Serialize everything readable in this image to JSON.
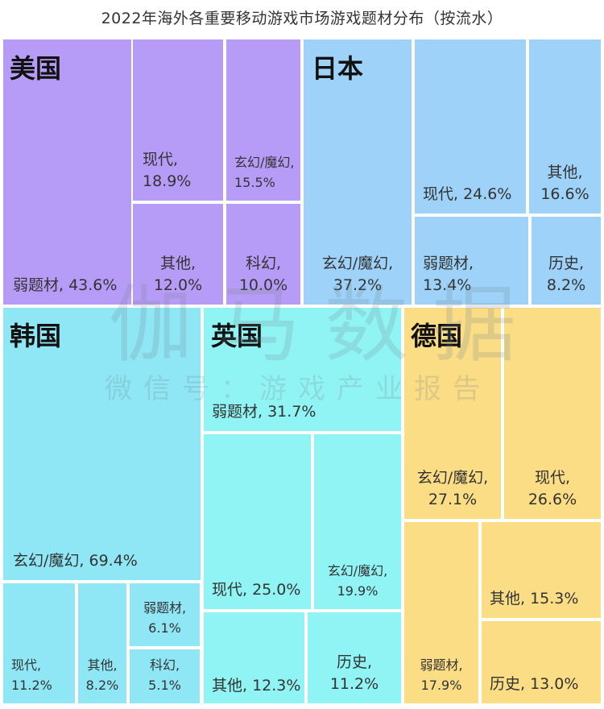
{
  "chart_data": {
    "type": "treemap",
    "title": "2022年海外各重要移动游戏市场游戏题材分布（按流水）",
    "watermark": {
      "main": "伽马数据",
      "sub": "微信号：游戏产业报告"
    },
    "colors": {
      "美国": "#B79CF7",
      "日本": "#9ED2F8",
      "韩国": "#8FE6F4",
      "英国": "#91F4F4",
      "德国": "#FBDD86"
    },
    "groups": [
      {
        "country": "美国",
        "items": [
          {
            "label": "弱题材",
            "pct": "43.6%",
            "value": 43.6
          },
          {
            "label": "现代",
            "pct": "18.9%",
            "value": 18.9
          },
          {
            "label": "玄幻/魔幻",
            "pct": "15.5%",
            "value": 15.5
          },
          {
            "label": "其他",
            "pct": "12.0%",
            "value": 12.0
          },
          {
            "label": "科幻",
            "pct": "10.0%",
            "value": 10.0
          }
        ]
      },
      {
        "country": "日本",
        "items": [
          {
            "label": "玄幻/魔幻",
            "pct": "37.2%",
            "value": 37.2
          },
          {
            "label": "现代",
            "pct": "24.6%",
            "value": 24.6
          },
          {
            "label": "其他",
            "pct": "16.6%",
            "value": 16.6
          },
          {
            "label": "弱题材",
            "pct": "13.4%",
            "value": 13.4
          },
          {
            "label": "历史",
            "pct": "8.2%",
            "value": 8.2
          }
        ]
      },
      {
        "country": "韩国",
        "items": [
          {
            "label": "玄幻/魔幻",
            "pct": "69.4%",
            "value": 69.4
          },
          {
            "label": "现代",
            "pct": "11.2%",
            "value": 11.2
          },
          {
            "label": "其他",
            "pct": "8.2%",
            "value": 8.2
          },
          {
            "label": "弱题材",
            "pct": "6.1%",
            "value": 6.1
          },
          {
            "label": "科幻",
            "pct": "5.1%",
            "value": 5.1
          }
        ]
      },
      {
        "country": "英国",
        "items": [
          {
            "label": "弱题材",
            "pct": "31.7%",
            "value": 31.7
          },
          {
            "label": "现代",
            "pct": "25.0%",
            "value": 25.0
          },
          {
            "label": "玄幻/魔幻",
            "pct": "19.9%",
            "value": 19.9
          },
          {
            "label": "其他",
            "pct": "12.3%",
            "value": 12.3
          },
          {
            "label": "历史",
            "pct": "11.2%",
            "value": 11.2
          }
        ]
      },
      {
        "country": "德国",
        "items": [
          {
            "label": "玄幻/魔幻",
            "pct": "27.1%",
            "value": 27.1
          },
          {
            "label": "现代",
            "pct": "26.6%",
            "value": 26.6
          },
          {
            "label": "弱题材",
            "pct": "17.9%",
            "value": 17.9
          },
          {
            "label": "其他",
            "pct": "15.3%",
            "value": 15.3
          },
          {
            "label": "历史",
            "pct": "13.0%",
            "value": 13.0
          }
        ]
      }
    ]
  }
}
